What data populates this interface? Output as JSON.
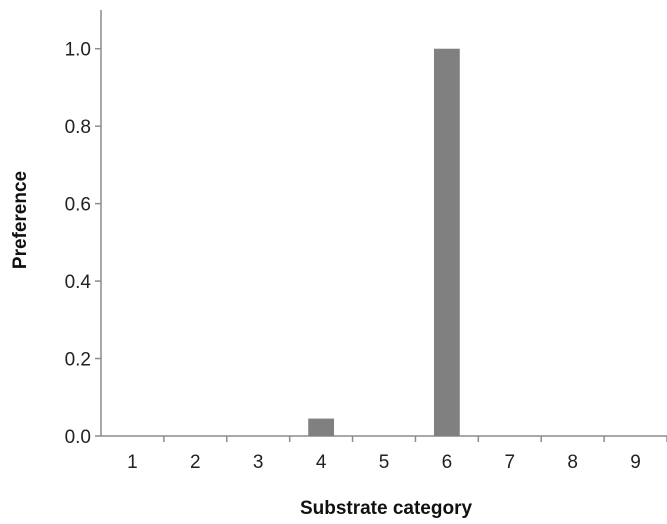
{
  "chart_data": {
    "type": "bar",
    "title": "",
    "xlabel": "Substrate category",
    "ylabel": "Preference",
    "categories": [
      "1",
      "2",
      "3",
      "4",
      "5",
      "6",
      "7",
      "8",
      "9"
    ],
    "values": [
      0,
      0,
      0,
      0.045,
      0,
      1.0,
      0,
      0,
      0
    ],
    "ylim": [
      0,
      1.1
    ],
    "yticks": [
      0.0,
      0.2,
      0.4,
      0.6,
      0.8,
      1.0
    ],
    "ytick_labels": [
      "0.0",
      "0.2",
      "0.4",
      "0.6",
      "0.8",
      "1.0"
    ],
    "grid": false,
    "bar_color": "#808080"
  }
}
